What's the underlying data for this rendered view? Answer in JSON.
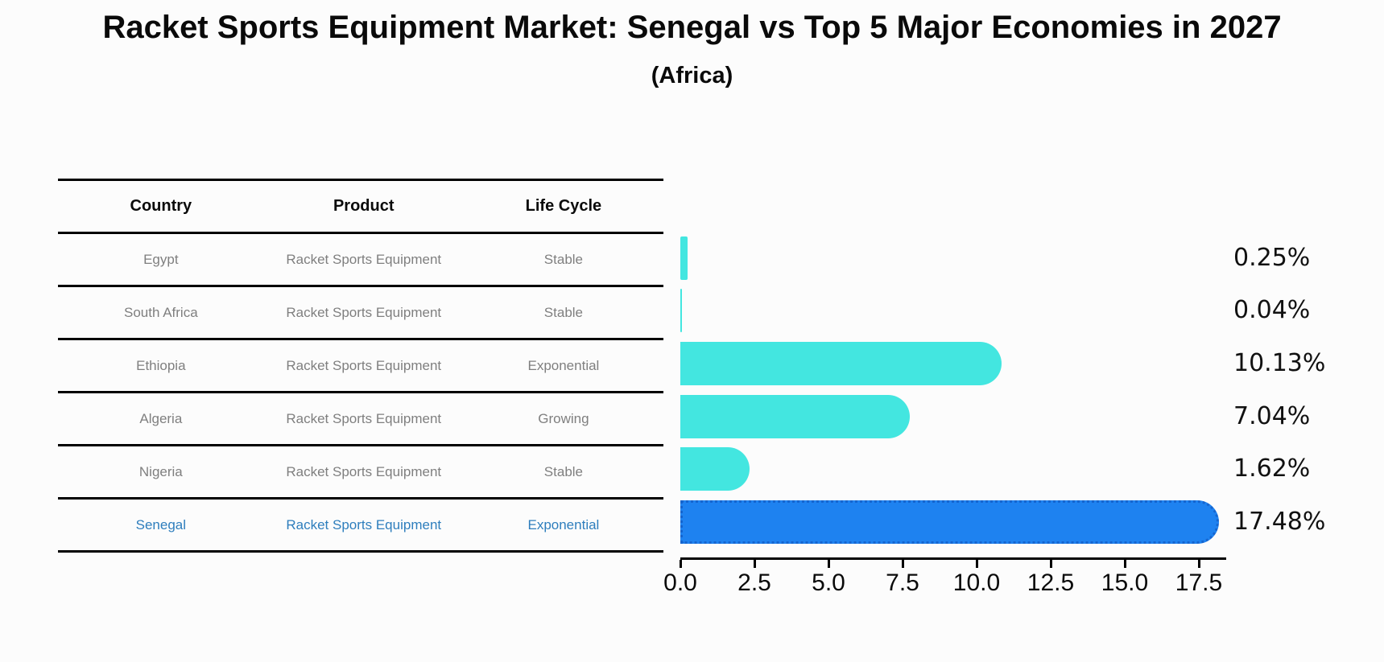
{
  "title": "Racket Sports Equipment Market: Senegal vs Top 5 Major Economies in 2027",
  "subtitle": "(Africa)",
  "table": {
    "headers": [
      "Country",
      "Product",
      "Life Cycle"
    ],
    "rows": [
      {
        "cells": [
          "Egypt",
          "Racket Sports Equipment",
          "Stable"
        ],
        "highlight": false
      },
      {
        "cells": [
          "South Africa",
          "Racket Sports Equipment",
          "Stable"
        ],
        "highlight": false
      },
      {
        "cells": [
          "Ethiopia",
          "Racket Sports Equipment",
          "Exponential"
        ],
        "highlight": false
      },
      {
        "cells": [
          "Algeria",
          "Racket Sports Equipment",
          "Growing"
        ],
        "highlight": false
      },
      {
        "cells": [
          "Nigeria",
          "Racket Sports Equipment",
          "Stable"
        ],
        "highlight": true
      }
    ],
    "highlight_row": {
      "cells": [
        "Senegal",
        "Racket Sports Equipment",
        "Exponential"
      ],
      "highlight": true
    }
  },
  "chart_data": {
    "type": "bar",
    "orientation": "horizontal",
    "title": "Racket Sports Equipment Market: Senegal vs Top 5 Major Economies in 2027 (Africa)",
    "categories": [
      "Egypt",
      "South Africa",
      "Ethiopia",
      "Algeria",
      "Nigeria",
      "Senegal"
    ],
    "values": [
      0.25,
      0.04,
      10.13,
      7.04,
      1.62,
      17.48
    ],
    "value_labels": [
      "0.25%",
      "0.04%",
      "10.13%",
      "7.04%",
      "1.62%",
      "17.48%"
    ],
    "xlabel": "",
    "ylabel": "",
    "xlim": [
      0,
      18.4
    ],
    "xticks": [
      "0.0",
      "2.5",
      "5.0",
      "7.5",
      "10.0",
      "12.5",
      "15.0",
      "17.5"
    ],
    "grid": false,
    "legend": false,
    "highlight_category": "Senegal",
    "colors": {
      "bar_default": "#43e6e0",
      "bar_highlight": "#1e82f0",
      "bar_highlight_edge": "#1565cf",
      "highlight_text": "#2e7ebd",
      "row_text": "#7f7f7f",
      "axis": "#000000",
      "label_text": "#111111"
    }
  }
}
